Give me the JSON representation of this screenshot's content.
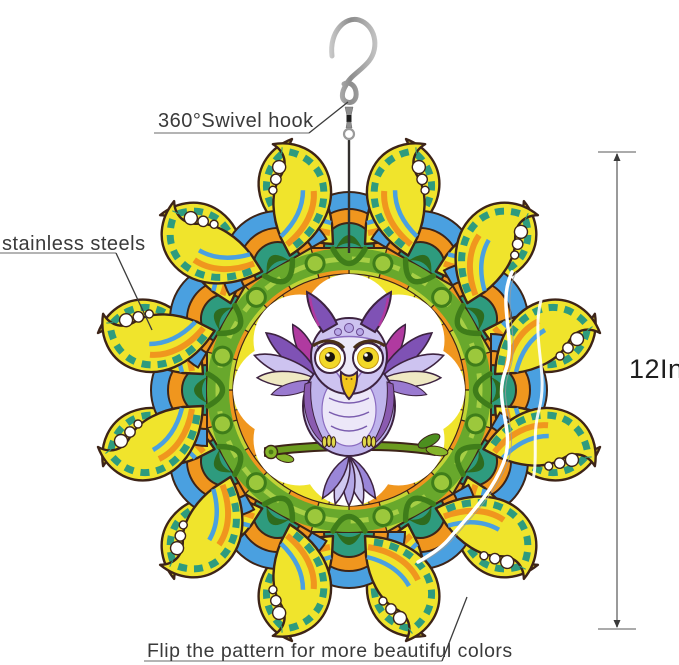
{
  "product": {
    "name": "owl-mandala-wind-spinner",
    "description": "Colorful 3D mandala wind spinner with owl center hanging from a swivel hook"
  },
  "annotations": {
    "hook_label": "360°Swivel hook",
    "material_label": "stainless steels",
    "size_label": "12In",
    "flip_label": "Flip the pattern for more beautiful colors"
  },
  "palette": {
    "outline": "#3d2418",
    "yellow": "#f0e42c",
    "yellow_green": "#c2d436",
    "green": "#68a82c",
    "dark_green": "#3f7d1a",
    "teal": "#2e9b7e",
    "blue": "#4aa0e0",
    "orange": "#f0961e",
    "owl_purple": "#7f52b5",
    "owl_magenta": "#b03aa0",
    "owl_lavender": "#cdc3f0",
    "eye_yellow": "#f2d829",
    "branch_green": "#6b9b1f",
    "metal": "#a8a8a8",
    "text": "#3a3a3a",
    "measure_line": "#8f8f8f"
  }
}
